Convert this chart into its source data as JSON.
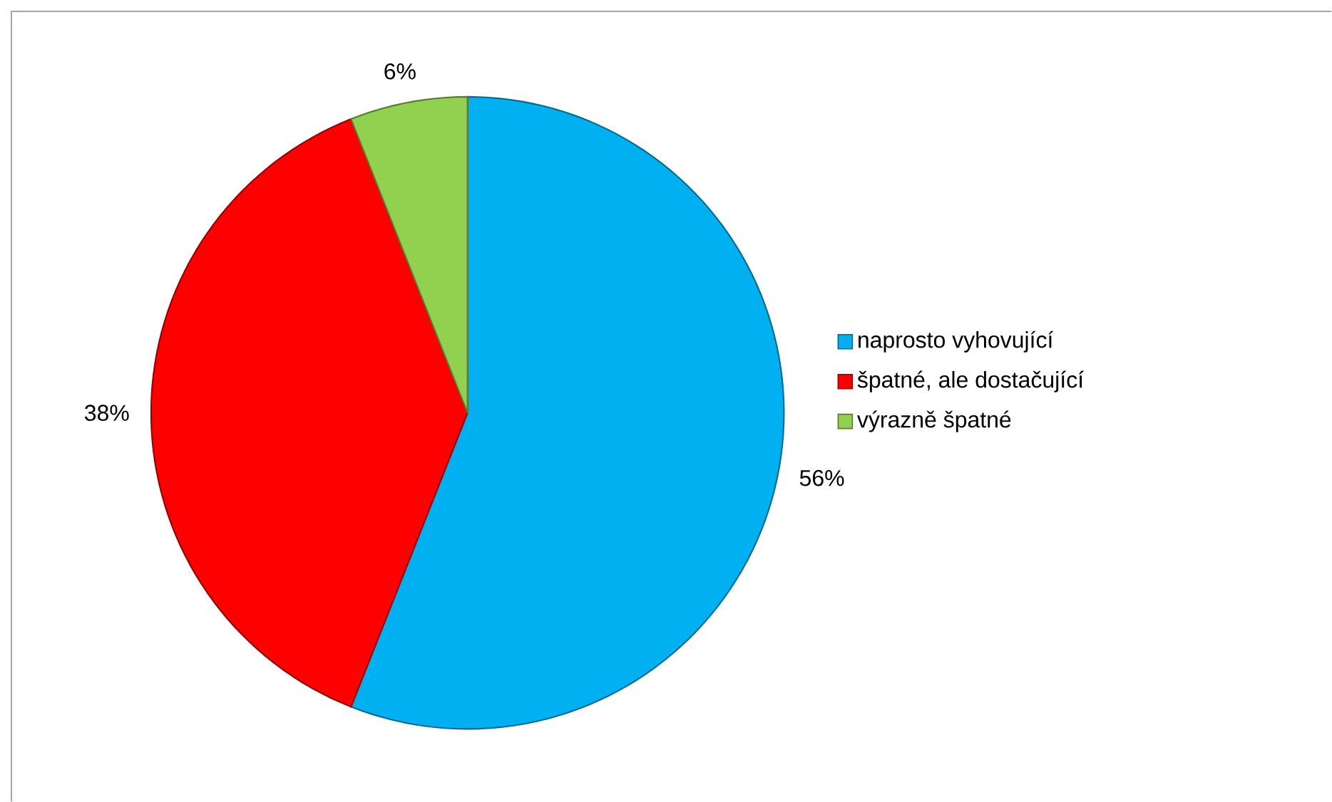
{
  "chart_data": {
    "type": "pie",
    "categories": [
      "naprosto vyhovující",
      "špatné, ale dostačující",
      "výrazně špatné"
    ],
    "values": [
      56,
      38,
      6
    ],
    "colors": [
      "#00b0f0",
      "#ff0000",
      "#92d050"
    ],
    "value_labels": [
      "56%",
      "38%",
      "6%"
    ],
    "legend": "right"
  }
}
